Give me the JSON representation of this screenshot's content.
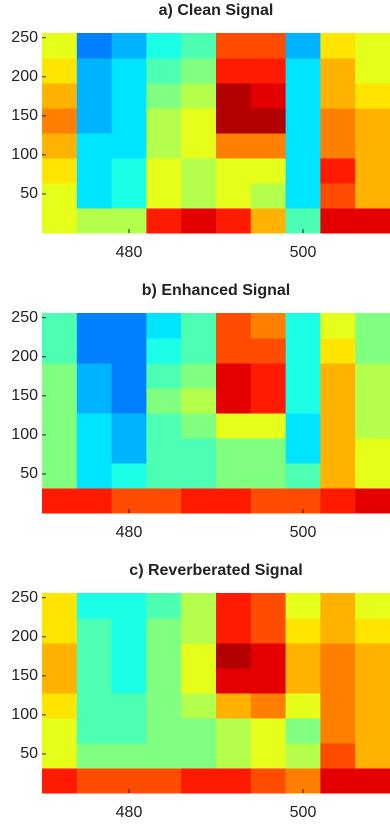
{
  "chart_data": [
    {
      "type": "heatmap",
      "title": "a) Clean Signal",
      "colormap": "jet",
      "clim": [
        0,
        1
      ],
      "xbins": [
        470,
        474,
        478,
        482,
        486,
        490,
        494,
        498,
        502,
        506,
        510
      ],
      "ybins": [
        0,
        32,
        64,
        96,
        128,
        160,
        192,
        224,
        256
      ],
      "z": [
        [
          0.6,
          0.55,
          0.55,
          0.85,
          0.9,
          0.85,
          0.7,
          0.45,
          0.9,
          0.9
        ],
        [
          0.6,
          0.35,
          0.4,
          0.6,
          0.55,
          0.6,
          0.55,
          0.35,
          0.8,
          0.7
        ],
        [
          0.65,
          0.35,
          0.4,
          0.6,
          0.55,
          0.6,
          0.6,
          0.35,
          0.85,
          0.7
        ],
        [
          0.7,
          0.35,
          0.35,
          0.55,
          0.6,
          0.75,
          0.75,
          0.35,
          0.75,
          0.7
        ],
        [
          0.75,
          0.3,
          0.35,
          0.55,
          0.6,
          0.95,
          0.95,
          0.35,
          0.75,
          0.7
        ],
        [
          0.7,
          0.3,
          0.35,
          0.5,
          0.55,
          0.95,
          0.9,
          0.35,
          0.7,
          0.65
        ],
        [
          0.65,
          0.3,
          0.35,
          0.45,
          0.5,
          0.85,
          0.85,
          0.35,
          0.7,
          0.6
        ],
        [
          0.6,
          0.25,
          0.3,
          0.4,
          0.45,
          0.8,
          0.8,
          0.3,
          0.65,
          0.6
        ]
      ],
      "xlim": [
        470,
        510
      ],
      "ylim": [
        0,
        256
      ],
      "xticks": [
        480,
        500
      ],
      "yticks": [
        50,
        100,
        150,
        200,
        250
      ]
    },
    {
      "type": "heatmap",
      "title": "b) Enhanced Signal",
      "colormap": "jet",
      "clim": [
        0,
        1
      ],
      "xbins": [
        470,
        474,
        478,
        482,
        486,
        490,
        494,
        498,
        502,
        506,
        510
      ],
      "ybins": [
        0,
        32,
        64,
        96,
        128,
        160,
        192,
        224,
        256
      ],
      "z": [
        [
          0.85,
          0.85,
          0.8,
          0.8,
          0.85,
          0.85,
          0.8,
          0.8,
          0.85,
          0.9
        ],
        [
          0.5,
          0.35,
          0.4,
          0.45,
          0.45,
          0.5,
          0.5,
          0.45,
          0.7,
          0.6
        ],
        [
          0.5,
          0.35,
          0.3,
          0.45,
          0.45,
          0.5,
          0.5,
          0.35,
          0.7,
          0.6
        ],
        [
          0.5,
          0.35,
          0.3,
          0.45,
          0.5,
          0.6,
          0.6,
          0.35,
          0.7,
          0.55
        ],
        [
          0.5,
          0.3,
          0.25,
          0.5,
          0.55,
          0.9,
          0.85,
          0.4,
          0.7,
          0.55
        ],
        [
          0.5,
          0.3,
          0.25,
          0.45,
          0.5,
          0.9,
          0.85,
          0.4,
          0.7,
          0.55
        ],
        [
          0.45,
          0.25,
          0.25,
          0.4,
          0.45,
          0.8,
          0.8,
          0.4,
          0.65,
          0.5
        ],
        [
          0.45,
          0.25,
          0.25,
          0.35,
          0.45,
          0.8,
          0.75,
          0.4,
          0.6,
          0.5
        ]
      ],
      "xlim": [
        470,
        510
      ],
      "ylim": [
        0,
        256
      ],
      "xticks": [
        480,
        500
      ],
      "yticks": [
        50,
        100,
        150,
        200,
        250
      ]
    },
    {
      "type": "heatmap",
      "title": "c) Reverberated Signal",
      "colormap": "jet",
      "clim": [
        0,
        1
      ],
      "xbins": [
        470,
        474,
        478,
        482,
        486,
        490,
        494,
        498,
        502,
        506,
        510
      ],
      "ybins": [
        0,
        32,
        64,
        96,
        128,
        160,
        192,
        224,
        256
      ],
      "z": [
        [
          0.85,
          0.8,
          0.8,
          0.8,
          0.85,
          0.85,
          0.8,
          0.75,
          0.9,
          0.9
        ],
        [
          0.6,
          0.5,
          0.5,
          0.5,
          0.5,
          0.55,
          0.6,
          0.55,
          0.8,
          0.7
        ],
        [
          0.6,
          0.45,
          0.45,
          0.5,
          0.5,
          0.55,
          0.6,
          0.5,
          0.75,
          0.7
        ],
        [
          0.65,
          0.45,
          0.45,
          0.5,
          0.55,
          0.7,
          0.75,
          0.6,
          0.75,
          0.7
        ],
        [
          0.7,
          0.45,
          0.4,
          0.5,
          0.6,
          0.9,
          0.9,
          0.7,
          0.75,
          0.7
        ],
        [
          0.7,
          0.45,
          0.4,
          0.5,
          0.6,
          0.95,
          0.9,
          0.7,
          0.75,
          0.7
        ],
        [
          0.65,
          0.45,
          0.4,
          0.5,
          0.55,
          0.85,
          0.8,
          0.65,
          0.7,
          0.65
        ],
        [
          0.65,
          0.4,
          0.4,
          0.45,
          0.55,
          0.85,
          0.8,
          0.6,
          0.7,
          0.6
        ]
      ],
      "xlim": [
        470,
        510
      ],
      "ylim": [
        0,
        256
      ],
      "xticks": [
        480,
        500
      ],
      "yticks": [
        50,
        100,
        150,
        200,
        250
      ]
    }
  ]
}
